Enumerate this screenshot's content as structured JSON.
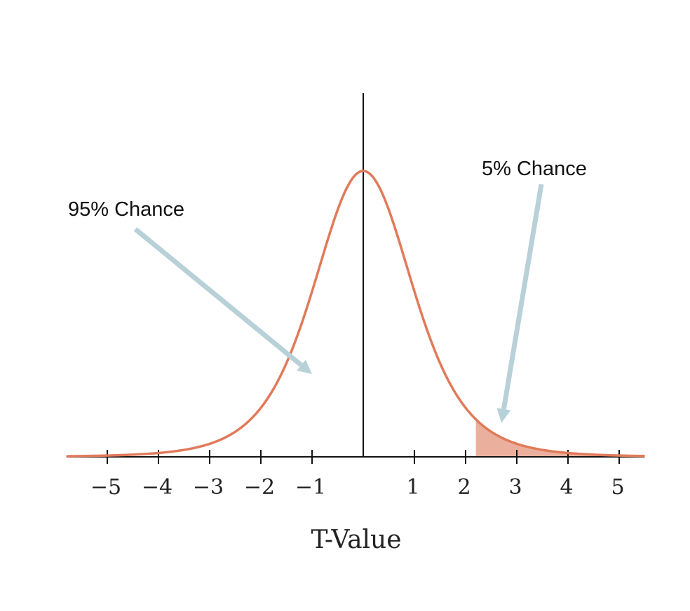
{
  "chart_data": {
    "type": "area",
    "title": "",
    "xlabel": "T-Value",
    "ylabel": "",
    "xlim": [
      -5.8,
      5.5
    ],
    "ylim": [
      0,
      0.42
    ],
    "x_ticks": [
      -5,
      -4,
      -3,
      -2,
      -1,
      1,
      2,
      3,
      4,
      5
    ],
    "x_tick_labels": [
      "−5",
      "−4",
      "−3",
      "−2",
      "−1",
      "1",
      "2",
      "3",
      "4",
      "5"
    ],
    "grid": false,
    "legend": "none",
    "series": [
      {
        "distribution": "t",
        "degrees_of_freedom": 5,
        "color": "#e07a5a",
        "shaded_region": {
          "from": 2.2,
          "to": 5.5,
          "color": "#e8a28c"
        }
      }
    ],
    "annotations": [
      {
        "text": "95% Chance",
        "arrow_color": "#b8d0d8",
        "arrow_tip": {
          "x": -1.0,
          "y": 0.11
        }
      },
      {
        "text": "5% Chance",
        "arrow_color": "#b8d0d8",
        "arrow_tip": {
          "x": 2.7,
          "y": 0.045
        }
      }
    ]
  }
}
